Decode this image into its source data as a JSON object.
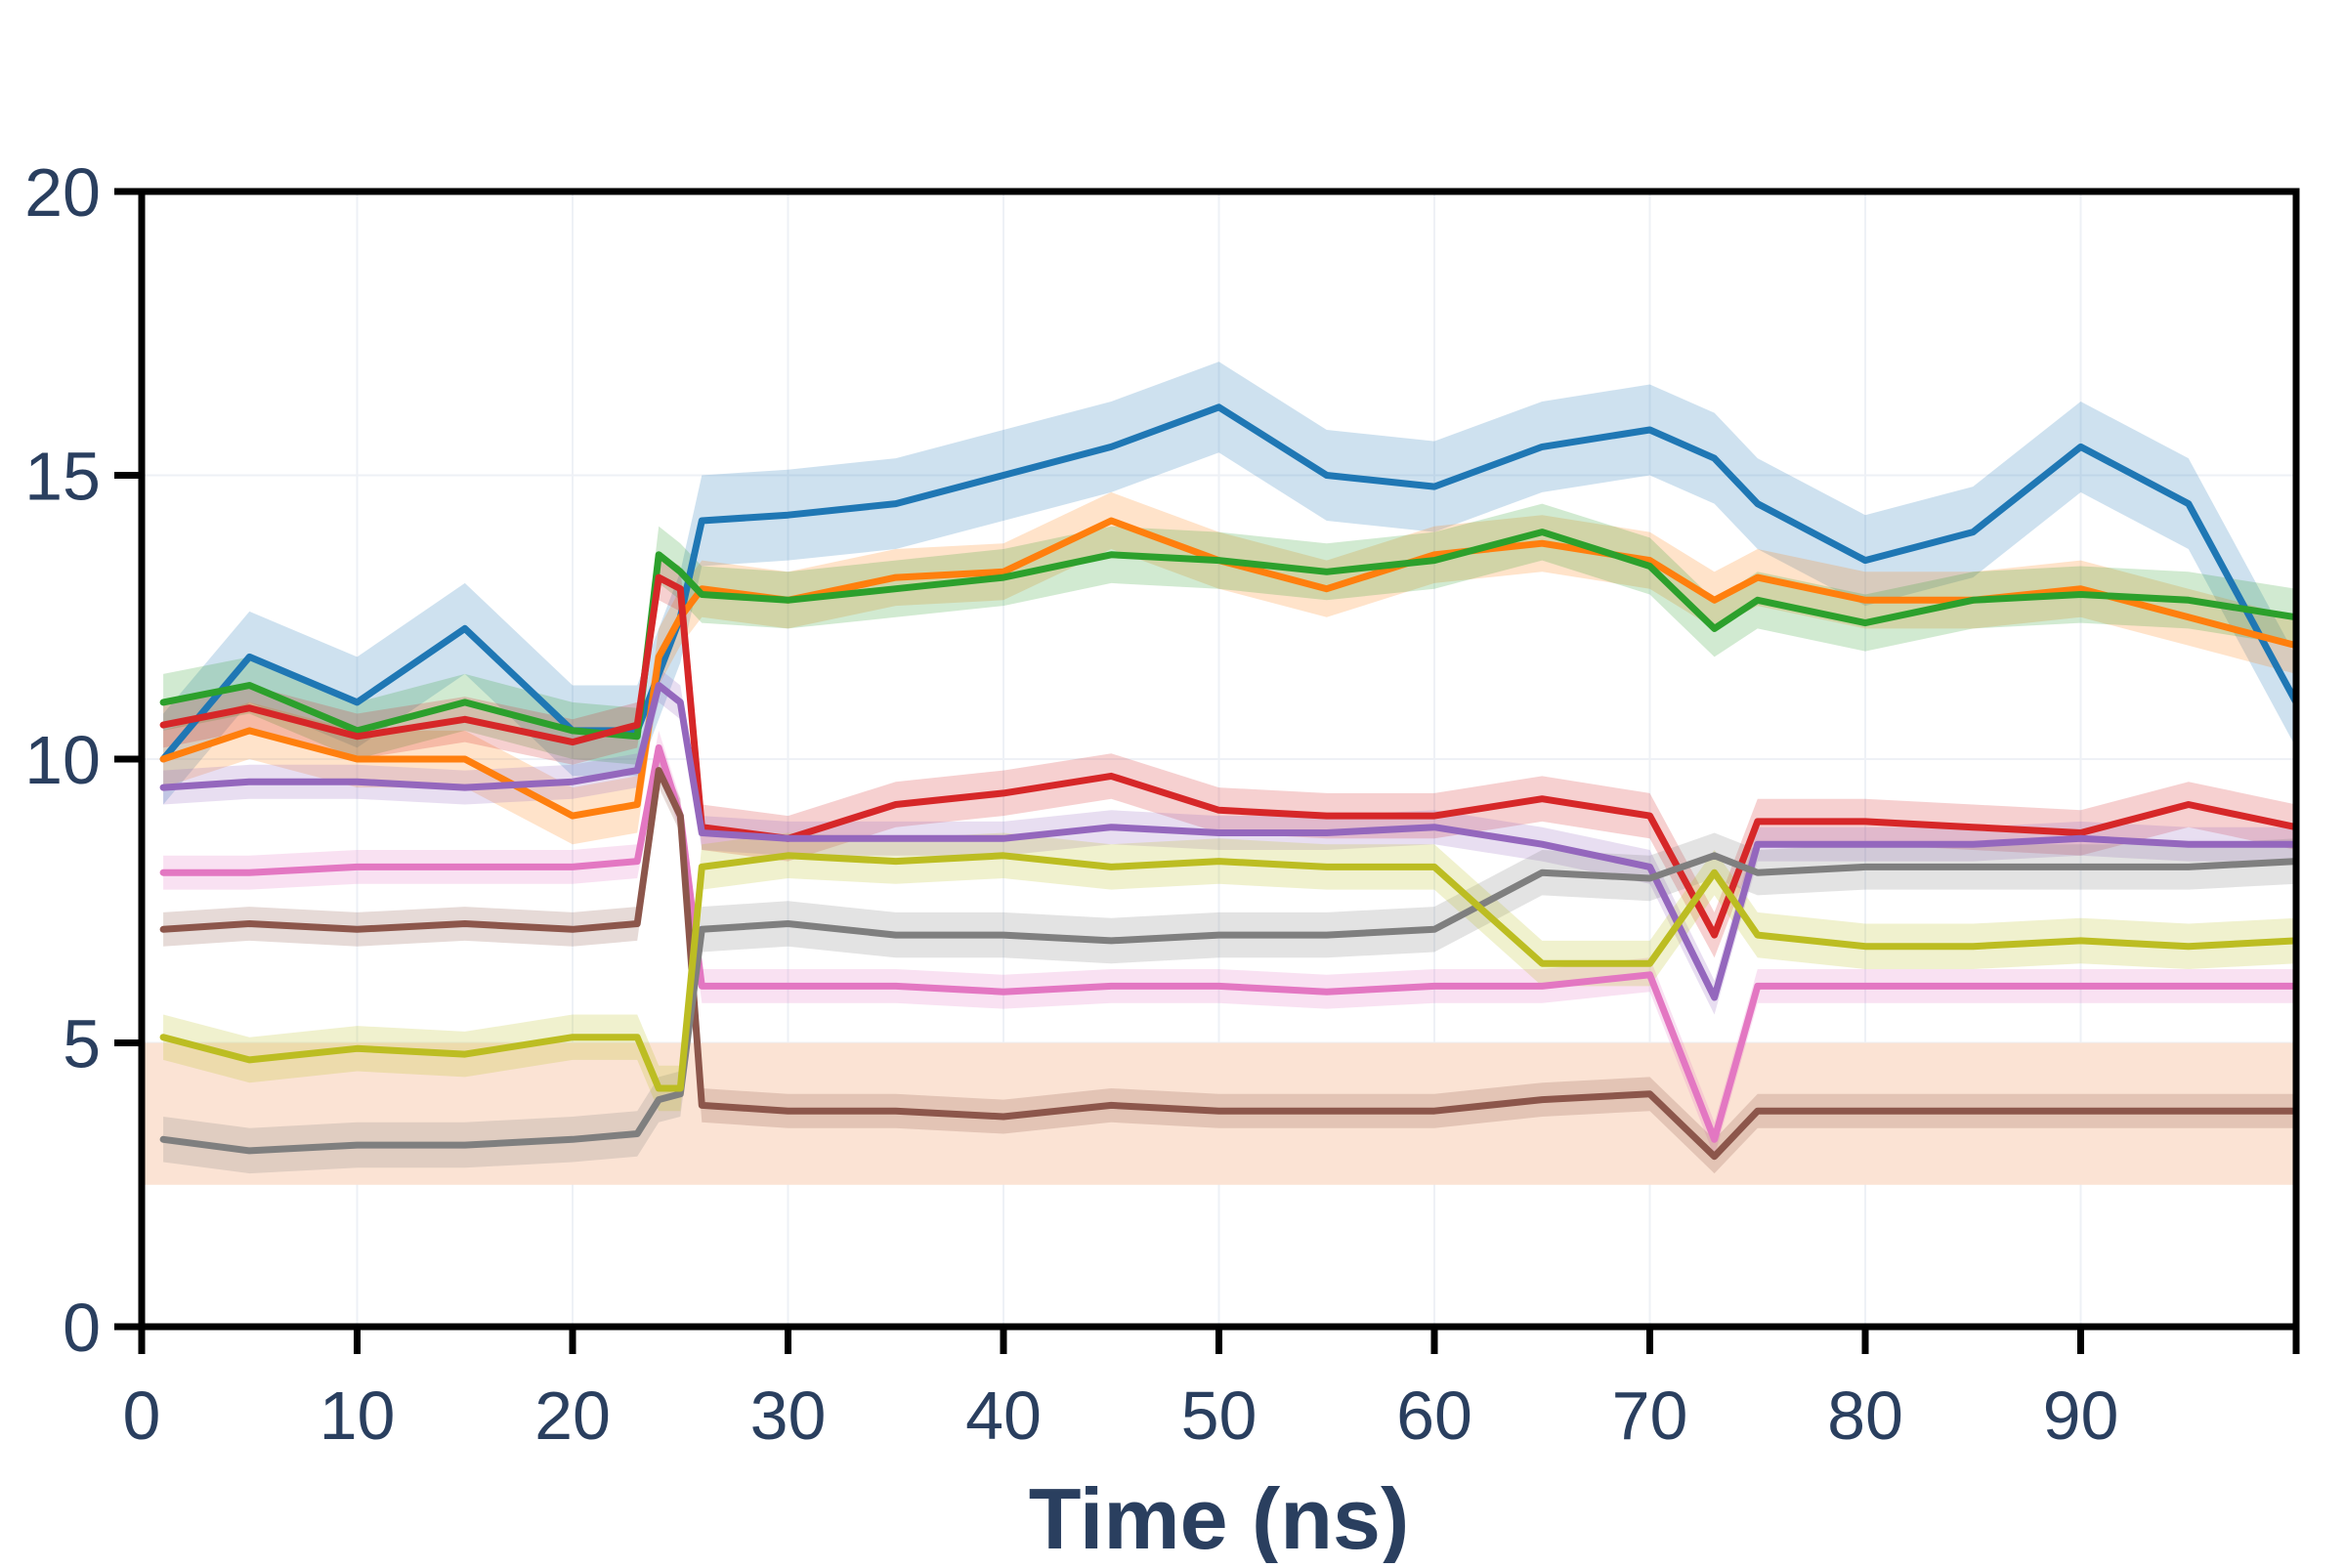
{
  "chart_data": {
    "type": "line",
    "title": "",
    "xlabel": "Time (ns)",
    "ylabel": "",
    "xlim": [
      0,
      100
    ],
    "ylim": [
      0,
      20
    ],
    "x_ticks": [
      "0",
      "10",
      "20",
      "30",
      "40",
      "50",
      "60",
      "70",
      "80",
      "90"
    ],
    "y_ticks": [
      "0",
      "5",
      "10",
      "15",
      "20"
    ],
    "grid": true,
    "legend": "none",
    "shaded_band": {
      "y_from": 2.5,
      "y_to": 5.0,
      "color": "#fbe3d4"
    },
    "band_opacity": 0.22,
    "x": [
      1,
      5,
      10,
      15,
      20,
      23,
      24,
      25,
      26,
      30,
      35,
      40,
      45,
      50,
      55,
      60,
      65,
      70,
      73,
      75,
      80,
      85,
      90,
      95,
      100
    ],
    "series": [
      {
        "color": "#1f77b4",
        "band": 0.8,
        "values": [
          10.0,
          11.8,
          11.0,
          12.3,
          10.5,
          10.5,
          11.5,
          12.5,
          14.2,
          14.3,
          14.5,
          15.0,
          15.5,
          16.2,
          15.0,
          14.8,
          15.5,
          15.8,
          15.3,
          14.5,
          13.5,
          14.0,
          15.5,
          14.5,
          11.0
        ]
      },
      {
        "color": "#ff7f0e",
        "band": 0.5,
        "values": [
          10.0,
          10.5,
          10.0,
          10.0,
          9.0,
          9.2,
          11.8,
          12.5,
          13.0,
          12.8,
          13.2,
          13.3,
          14.2,
          13.5,
          13.0,
          13.6,
          13.8,
          13.5,
          12.8,
          13.2,
          12.8,
          12.8,
          13.0,
          12.5,
          12.0
        ]
      },
      {
        "color": "#2ca02c",
        "band": 0.5,
        "values": [
          11.0,
          11.3,
          10.5,
          11.0,
          10.5,
          10.4,
          13.6,
          13.3,
          12.9,
          12.8,
          13.0,
          13.2,
          13.6,
          13.5,
          13.3,
          13.5,
          14.0,
          13.4,
          12.3,
          12.8,
          12.4,
          12.8,
          12.9,
          12.8,
          12.5
        ]
      },
      {
        "color": "#d62728",
        "band": 0.4,
        "values": [
          10.6,
          10.9,
          10.4,
          10.7,
          10.3,
          10.6,
          13.2,
          13.0,
          8.8,
          8.6,
          9.2,
          9.4,
          9.7,
          9.1,
          9.0,
          9.0,
          9.3,
          9.0,
          6.9,
          8.9,
          8.9,
          8.8,
          8.7,
          9.2,
          8.8
        ]
      },
      {
        "color": "#9467bd",
        "band": 0.3,
        "values": [
          9.5,
          9.6,
          9.6,
          9.5,
          9.6,
          9.8,
          11.3,
          11.0,
          8.7,
          8.6,
          8.6,
          8.6,
          8.8,
          8.7,
          8.7,
          8.8,
          8.5,
          8.1,
          5.8,
          8.5,
          8.5,
          8.5,
          8.6,
          8.5,
          8.5
        ]
      },
      {
        "color": "#e377c2",
        "band": 0.3,
        "values": [
          8.0,
          8.0,
          8.1,
          8.1,
          8.1,
          8.2,
          10.2,
          9.0,
          6.0,
          6.0,
          6.0,
          5.9,
          6.0,
          6.0,
          5.9,
          6.0,
          6.0,
          6.2,
          3.3,
          6.0,
          6.0,
          6.0,
          6.0,
          6.0,
          6.0
        ]
      },
      {
        "color": "#8c564b",
        "band": 0.3,
        "values": [
          7.0,
          7.1,
          7.0,
          7.1,
          7.0,
          7.1,
          9.8,
          9.0,
          3.9,
          3.8,
          3.8,
          3.7,
          3.9,
          3.8,
          3.8,
          3.8,
          4.0,
          4.1,
          3.0,
          3.8,
          3.8,
          3.8,
          3.8,
          3.8,
          3.8
        ]
      },
      {
        "color": "#7f7f7f",
        "band": 0.4,
        "values": [
          3.3,
          3.1,
          3.2,
          3.2,
          3.3,
          3.4,
          4.0,
          4.1,
          7.0,
          7.1,
          6.9,
          6.9,
          6.8,
          6.9,
          6.9,
          7.0,
          8.0,
          7.9,
          8.3,
          8.0,
          8.1,
          8.1,
          8.1,
          8.1,
          8.2
        ]
      },
      {
        "color": "#bcbd22",
        "band": 0.4,
        "values": [
          5.1,
          4.7,
          4.9,
          4.8,
          5.1,
          5.1,
          4.2,
          4.2,
          8.1,
          8.3,
          8.2,
          8.3,
          8.1,
          8.2,
          8.1,
          8.1,
          6.4,
          6.4,
          8.0,
          6.9,
          6.7,
          6.7,
          6.8,
          6.7,
          6.8
        ]
      }
    ]
  }
}
